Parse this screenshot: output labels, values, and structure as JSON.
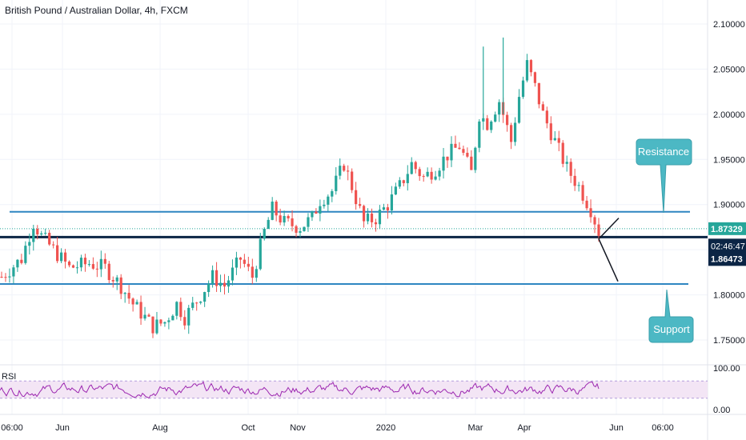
{
  "chart_data": {
    "type": "candlestick",
    "title": "British Pound / Australian Dollar, 4h, FXCM",
    "x_tick_labels": [
      "06:00",
      "Jun",
      "Aug",
      "Oct",
      "Nov",
      "2020",
      "Mar",
      "Apr",
      "Jun",
      "06:00"
    ],
    "y_tick_labels": [
      "2.10000",
      "2.05000",
      "2.00000",
      "1.95000",
      "1.90000",
      "1.80000",
      "1.75000"
    ],
    "ylim": [
      1.725,
      2.115
    ],
    "price_path": [
      [
        0,
        1.82
      ],
      [
        5,
        1.84
      ],
      [
        8,
        1.88
      ],
      [
        10,
        1.865
      ],
      [
        13,
        1.85
      ],
      [
        17,
        1.83
      ],
      [
        22,
        1.835
      ],
      [
        26,
        1.83
      ],
      [
        30,
        1.81
      ],
      [
        33,
        1.79
      ],
      [
        38,
        1.765
      ],
      [
        41,
        1.77
      ],
      [
        44,
        1.79
      ],
      [
        46,
        1.775
      ],
      [
        50,
        1.8
      ],
      [
        53,
        1.82
      ],
      [
        56,
        1.81
      ],
      [
        60,
        1.84
      ],
      [
        63,
        1.82
      ],
      [
        66,
        1.87
      ],
      [
        68,
        1.895
      ],
      [
        71,
        1.88
      ],
      [
        75,
        1.875
      ],
      [
        78,
        1.885
      ],
      [
        80,
        1.905
      ],
      [
        83,
        1.915
      ],
      [
        86,
        1.945
      ],
      [
        88,
        1.92
      ],
      [
        91,
        1.88
      ],
      [
        94,
        1.885
      ],
      [
        97,
        1.9
      ],
      [
        100,
        1.92
      ],
      [
        103,
        1.945
      ],
      [
        106,
        1.93
      ],
      [
        109,
        1.94
      ],
      [
        112,
        1.955
      ],
      [
        115,
        1.965
      ],
      [
        118,
        1.935
      ],
      [
        120,
        2.0
      ],
      [
        122,
        1.99
      ],
      [
        125,
        2.015
      ],
      [
        128,
        1.97
      ],
      [
        130,
        2.02
      ],
      [
        132,
        2.055
      ],
      [
        134,
        2.03
      ],
      [
        136,
        2.0
      ],
      [
        139,
        1.97
      ],
      [
        142,
        1.94
      ],
      [
        145,
        1.92
      ],
      [
        148,
        1.895
      ],
      [
        150,
        1.87
      ]
    ],
    "price_points": 150,
    "spikes": [
      [
        121,
        2.075
      ],
      [
        126,
        2.085
      ]
    ],
    "resistance_level": 1.892,
    "support_level": 1.812,
    "current_price_line": 1.864,
    "dotted_level": 1.8733,
    "price_labels": {
      "last": "1.87329",
      "countdown": "02:46:47",
      "current": "1.86473"
    },
    "annotations": {
      "resistance": "Resistance",
      "support": "Support"
    },
    "rsi": {
      "label": "RSI",
      "y_tick_labels": [
        "100.00",
        "0.00"
      ],
      "band": [
        30,
        70
      ]
    }
  },
  "colors": {
    "up": "#26a69a",
    "down": "#ef5350",
    "level_line": "#2e86c1",
    "current_line": "#0b2545",
    "callout": "#4cb8c4",
    "rsi_line": "#9c27b0",
    "rsi_band": "#f3e5f5"
  }
}
